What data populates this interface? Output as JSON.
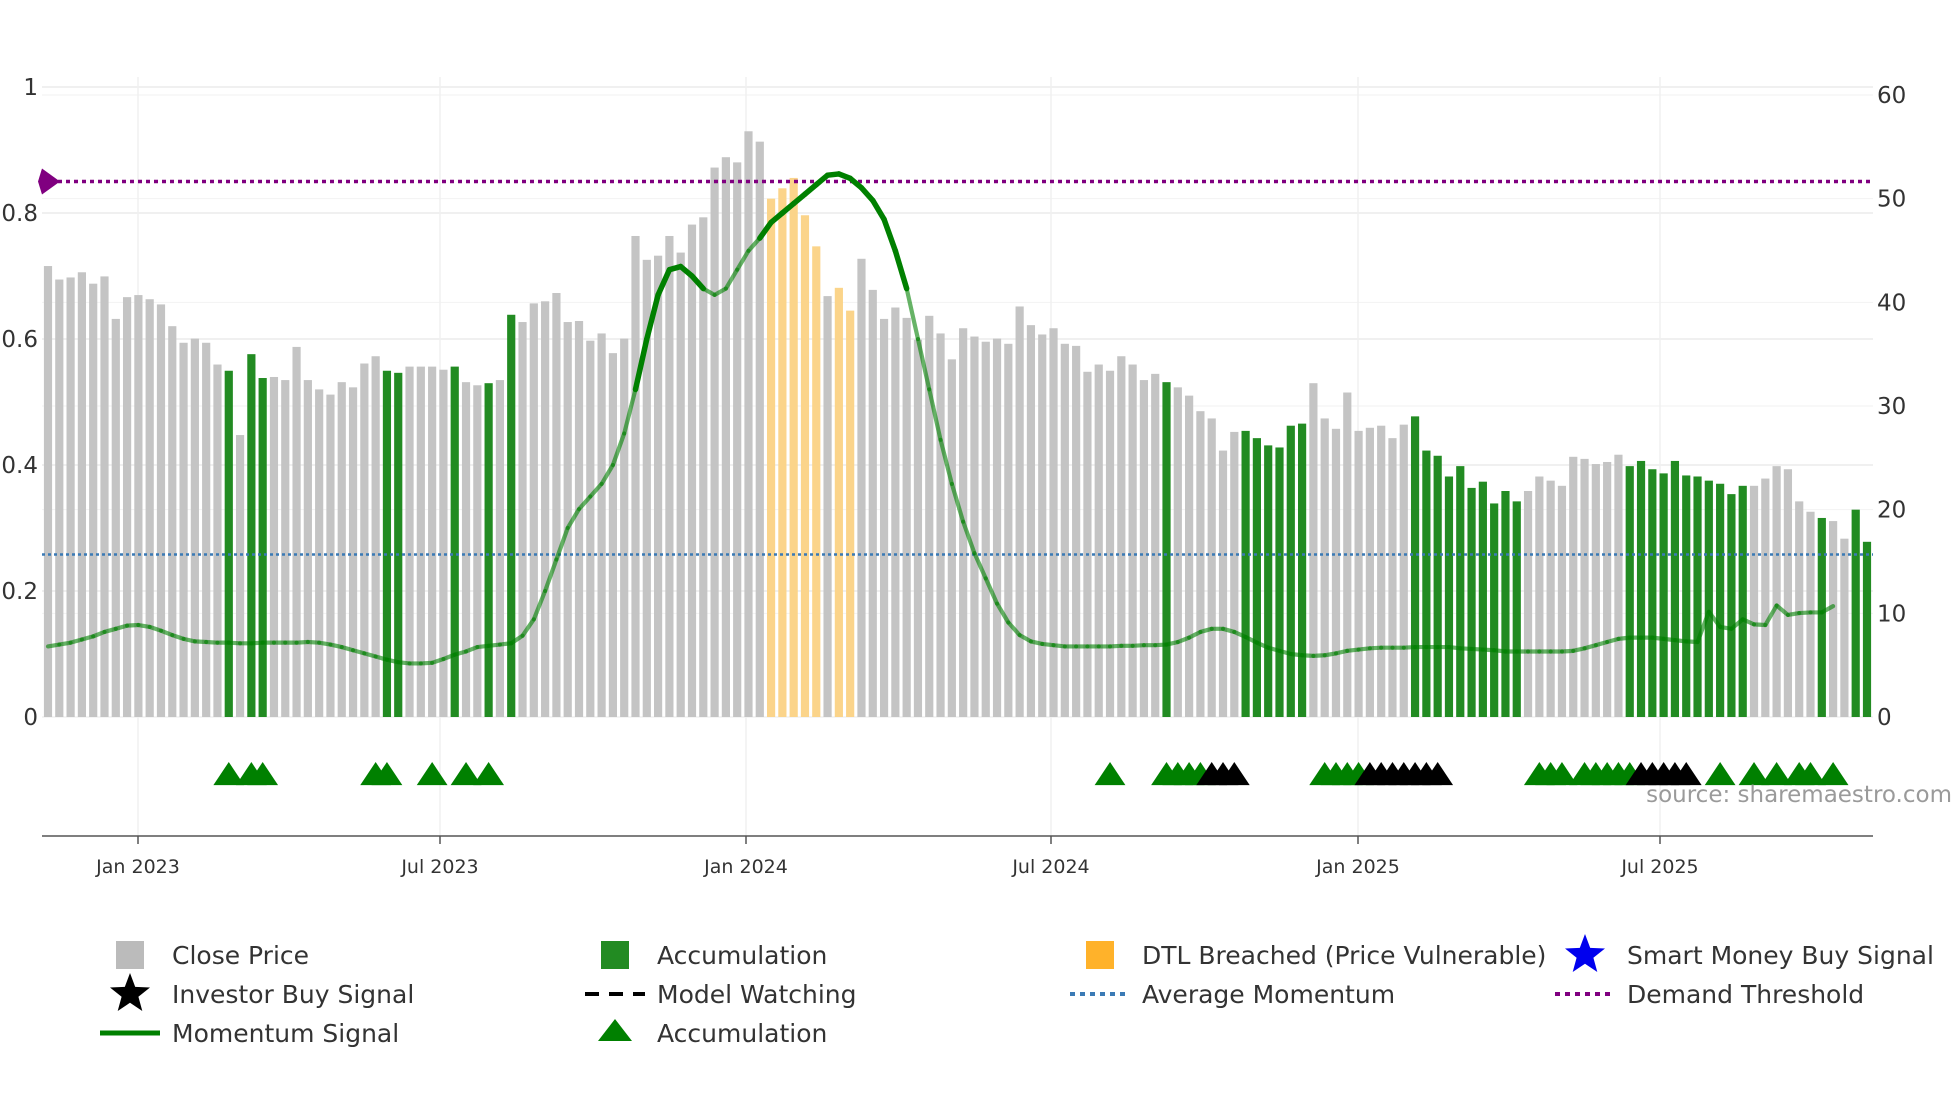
{
  "chart_data": {
    "type": "bar",
    "title": "",
    "source": "source: sharemaestro.com",
    "left_axis": {
      "ticks": [
        "0",
        "0.2",
        "0.4",
        "0.6",
        "0.8",
        "1"
      ],
      "range": [
        0,
        1
      ]
    },
    "right_axis": {
      "ticks": [
        "0",
        "10",
        "20",
        "30",
        "40",
        "50",
        "60"
      ],
      "range": [
        0,
        60
      ]
    },
    "x_axis": {
      "ticks": [
        "Jan 2023",
        "Jul 2023",
        "Jan 2024",
        "Jul 2024",
        "Jan 2025",
        "Jul 2025"
      ]
    },
    "close_price": [
      43.5,
      42.2,
      42.4,
      42.9,
      41.8,
      42.5,
      38.4,
      40.5,
      40.7,
      40.3,
      39.8,
      37.7,
      36.1,
      36.5,
      36.1,
      34.0,
      33.4,
      27.2,
      35.0,
      32.7,
      32.8,
      32.5,
      35.7,
      32.5,
      31.6,
      31.1,
      32.3,
      31.8,
      34.1,
      34.8,
      33.4,
      33.2,
      33.8,
      33.8,
      33.8,
      33.5,
      33.8,
      32.3,
      32.0,
      32.2,
      32.5,
      38.8,
      38.1,
      39.9,
      40.1,
      40.9,
      38.1,
      38.2,
      36.3,
      37.0,
      35.1,
      36.5,
      46.4,
      44.1,
      44.5,
      46.4,
      44.8,
      47.5,
      48.2,
      53.0,
      54.0,
      53.5,
      56.5,
      55.5,
      50.0,
      51.0,
      52.0,
      48.4,
      45.4,
      40.6,
      41.4,
      39.2,
      44.2,
      41.2,
      38.4,
      39.5,
      38.5,
      36.4,
      38.7,
      37.0,
      34.5,
      37.5,
      36.7,
      36.2,
      36.5,
      36.0,
      39.6,
      37.8,
      36.9,
      37.5,
      36.0,
      35.8,
      33.3,
      34.0,
      33.4,
      34.8,
      34.0,
      32.5,
      33.1,
      32.3,
      31.8,
      31.0,
      29.5,
      28.8,
      25.7,
      27.5,
      27.6,
      26.9,
      26.2,
      26.0,
      28.1,
      28.3,
      32.2,
      28.8,
      27.8,
      31.3,
      27.6,
      27.9,
      28.1,
      26.9,
      28.2,
      29.0,
      25.7,
      25.2,
      23.2,
      24.2,
      22.1,
      22.7,
      20.6,
      21.8,
      20.8,
      21.8,
      23.2,
      22.8,
      22.3,
      25.1,
      24.9,
      24.4,
      24.6,
      25.3,
      24.2,
      24.7,
      23.9,
      23.5,
      24.7,
      23.3,
      23.2,
      22.8,
      22.5,
      21.5,
      22.3,
      22.3,
      23.0,
      24.2,
      23.9,
      20.8,
      19.8,
      19.2,
      18.9,
      17.2,
      20.0,
      16.9
    ],
    "close_price_units": "right axis price units (0-60); colors encode state",
    "bar_state": [
      "c",
      "c",
      "c",
      "c",
      "c",
      "c",
      "c",
      "c",
      "c",
      "c",
      "c",
      "c",
      "c",
      "c",
      "c",
      "c",
      "a",
      "c",
      "a",
      "a",
      "c",
      "c",
      "c",
      "c",
      "c",
      "c",
      "c",
      "c",
      "c",
      "c",
      "a",
      "a",
      "c",
      "c",
      "c",
      "c",
      "a",
      "c",
      "c",
      "a",
      "c",
      "a",
      "c",
      "c",
      "c",
      "c",
      "c",
      "c",
      "c",
      "c",
      "c",
      "c",
      "c",
      "c",
      "c",
      "c",
      "c",
      "c",
      "c",
      "c",
      "c",
      "c",
      "c",
      "c",
      "d",
      "d",
      "d",
      "d",
      "d",
      "c",
      "d",
      "d",
      "c",
      "c",
      "c",
      "c",
      "c",
      "c",
      "c",
      "c",
      "c",
      "c",
      "c",
      "c",
      "c",
      "c",
      "c",
      "c",
      "c",
      "c",
      "c",
      "c",
      "c",
      "c",
      "c",
      "c",
      "c",
      "c",
      "c",
      "a",
      "c",
      "c",
      "c",
      "c",
      "c",
      "c",
      "a",
      "a",
      "a",
      "a",
      "a",
      "a",
      "c",
      "c",
      "c",
      "c",
      "c",
      "c",
      "c",
      "c",
      "c",
      "a",
      "a",
      "a",
      "a",
      "a",
      "a",
      "a",
      "a",
      "a",
      "a",
      "c",
      "c",
      "c",
      "c",
      "c",
      "c",
      "c",
      "c",
      "c",
      "a",
      "a",
      "a",
      "a",
      "a",
      "a",
      "a",
      "a",
      "a",
      "a",
      "a",
      "c",
      "c",
      "c",
      "c",
      "c",
      "c",
      "a",
      "c",
      "c",
      "a",
      "a",
      "a",
      "a",
      "a",
      "a",
      "a"
    ],
    "momentum_signal": [
      0.112,
      0.115,
      0.118,
      0.123,
      0.128,
      0.135,
      0.14,
      0.145,
      0.146,
      0.143,
      0.137,
      0.13,
      0.124,
      0.12,
      0.119,
      0.118,
      0.118,
      0.117,
      0.117,
      0.118,
      0.118,
      0.118,
      0.118,
      0.119,
      0.118,
      0.115,
      0.111,
      0.106,
      0.101,
      0.096,
      0.091,
      0.087,
      0.085,
      0.085,
      0.086,
      0.092,
      0.099,
      0.104,
      0.111,
      0.113,
      0.115,
      0.117,
      0.129,
      0.155,
      0.2,
      0.25,
      0.3,
      0.33,
      0.35,
      0.37,
      0.4,
      0.45,
      0.52,
      0.6,
      0.67,
      0.71,
      0.715,
      0.7,
      0.68,
      0.67,
      0.68,
      0.71,
      0.74,
      0.76,
      0.785,
      0.8,
      0.815,
      0.83,
      0.845,
      0.86,
      0.862,
      0.855,
      0.84,
      0.82,
      0.79,
      0.74,
      0.68,
      0.6,
      0.52,
      0.44,
      0.37,
      0.31,
      0.26,
      0.22,
      0.18,
      0.15,
      0.13,
      0.12,
      0.116,
      0.114,
      0.112,
      0.112,
      0.112,
      0.112,
      0.112,
      0.113,
      0.113,
      0.114,
      0.114,
      0.115,
      0.119,
      0.126,
      0.135,
      0.14,
      0.14,
      0.135,
      0.127,
      0.118,
      0.11,
      0.105,
      0.1,
      0.098,
      0.097,
      0.098,
      0.101,
      0.105,
      0.107,
      0.109,
      0.11,
      0.11,
      0.11,
      0.111,
      0.111,
      0.111,
      0.111,
      0.109,
      0.108,
      0.107,
      0.106,
      0.104,
      0.104,
      0.104,
      0.104,
      0.104,
      0.104,
      0.105,
      0.109,
      0.114,
      0.119,
      0.124,
      0.126,
      0.126,
      0.126,
      0.124,
      0.122,
      0.12,
      0.119,
      0.167,
      0.143,
      0.14,
      0.155,
      0.147,
      0.146,
      0.177,
      0.162,
      0.165,
      0.166,
      0.166,
      0.176
    ],
    "momentum_units": "left axis (0-1)",
    "momentum_style_key": "bold where momentum exceeds 0.75",
    "average_momentum": 0.258,
    "demand_threshold": 0.85,
    "accumulation_markers": [
      16,
      18,
      19,
      29,
      30,
      34,
      37,
      39,
      94,
      99,
      100,
      101,
      102,
      113,
      114,
      115,
      116,
      132,
      133,
      134,
      136,
      137,
      138,
      139,
      140,
      148,
      151,
      153,
      155,
      156,
      158
    ],
    "investor_buy_markers": [
      103,
      104,
      105,
      117,
      118,
      119,
      120,
      121,
      122,
      123,
      141,
      142,
      143,
      144,
      145
    ],
    "smart_money_markers": [],
    "model_watching_markers": [],
    "legend": [
      {
        "label": "Close Price",
        "color": "#bbbbbb",
        "symbol": "square"
      },
      {
        "label": "Accumulation",
        "color": "#228b22",
        "symbol": "square"
      },
      {
        "label": "DTL Breached (Price Vulnerable)",
        "color": "#ffb22a",
        "symbol": "square"
      },
      {
        "label": "Smart Money Buy Signal",
        "color": "#0000ee",
        "symbol": "star"
      },
      {
        "label": "Investor Buy Signal",
        "color": "#000000",
        "symbol": "star"
      },
      {
        "label": "Model Watching",
        "color": "#000000",
        "symbol": "dash"
      },
      {
        "label": "Average Momentum",
        "color": "#3a7ab5",
        "symbol": "dot"
      },
      {
        "label": "Demand Threshold",
        "color": "#800080",
        "symbol": "dot"
      },
      {
        "label": "Momentum Signal",
        "color": "#008000",
        "symbol": "line"
      },
      {
        "label": "Accumulation",
        "color": "#008000",
        "symbol": "triangle"
      }
    ],
    "colors": {
      "close": "#c4c4c4",
      "accumulation_bar": "#228b22",
      "dtl_bar": "#fbd48a",
      "momentum": "#008000",
      "average_line": "#3a7ab5",
      "threshold": "#800080",
      "marker_accum": "#008000",
      "marker_investor": "#000000"
    }
  }
}
